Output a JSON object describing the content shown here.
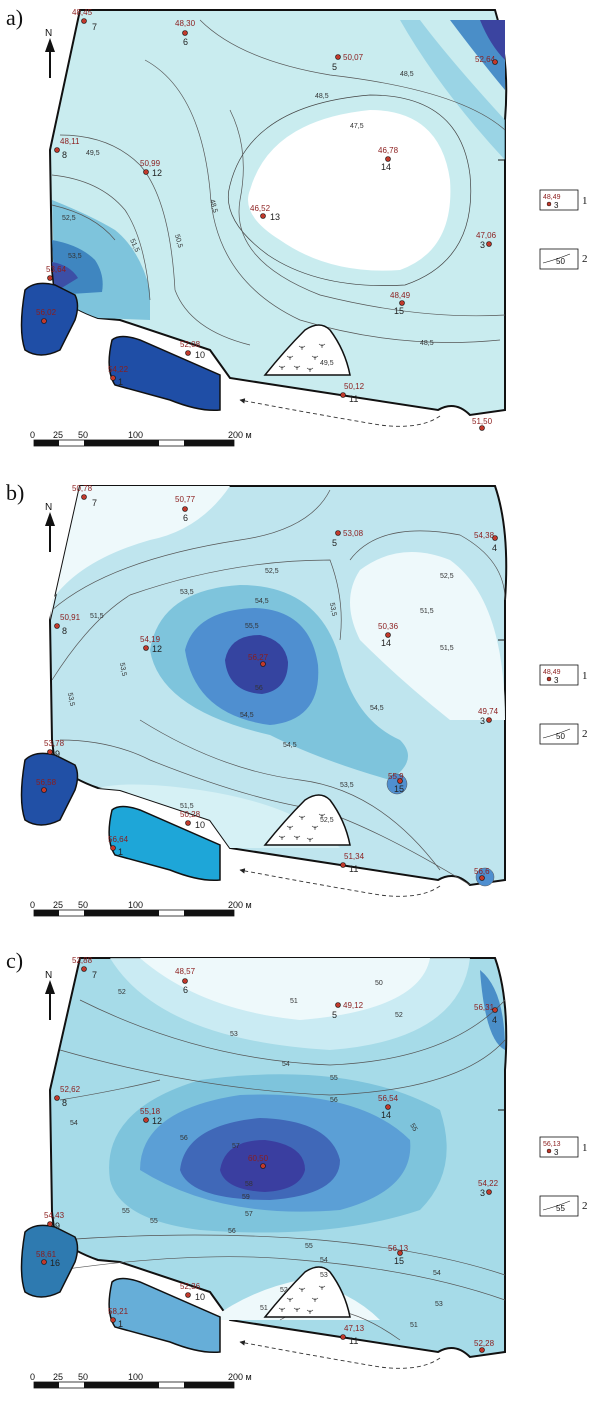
{
  "panels": [
    {
      "label": "a)",
      "wells": [
        {
          "id": "7",
          "value": "48,45"
        },
        {
          "id": "6",
          "value": "48,30"
        },
        {
          "id": "5",
          "value": "50,07"
        },
        {
          "id": "4",
          "value": "52,64"
        },
        {
          "id": "8",
          "value": "48,11"
        },
        {
          "id": "12",
          "value": "50,99"
        },
        {
          "id": "14",
          "value": "46,78"
        },
        {
          "id": "13",
          "value": "46,52"
        },
        {
          "id": "3",
          "value": "47,06"
        },
        {
          "id": "15",
          "value": "48,49"
        },
        {
          "id": "9",
          "value": "53,64"
        },
        {
          "id": "16",
          "value": "56,02"
        },
        {
          "id": "1",
          "value": "54,22"
        },
        {
          "id": "10",
          "value": "52,08"
        },
        {
          "id": "11",
          "value": "50,12"
        },
        {
          "id": "2",
          "value": "51,50"
        }
      ],
      "isolines": [
        "48,5",
        "47,5",
        "49,5",
        "50,5",
        "51,5",
        "52,5",
        "53,5"
      ],
      "legend": {
        "value": "48,49",
        "well": "3",
        "item1": "1",
        "contour": "50",
        "item2": "2"
      }
    },
    {
      "label": "b)",
      "wells": [
        {
          "id": "7",
          "value": "50,78"
        },
        {
          "id": "6",
          "value": "50,77"
        },
        {
          "id": "5",
          "value": "53,08"
        },
        {
          "id": "4",
          "value": "54,38"
        },
        {
          "id": "8",
          "value": "50,91"
        },
        {
          "id": "12",
          "value": "54,19"
        },
        {
          "id": "14",
          "value": "50,36"
        },
        {
          "id": "13",
          "value": "56,27"
        },
        {
          "id": "3",
          "value": "49,74"
        },
        {
          "id": "15",
          "value": "55,9"
        },
        {
          "id": "9",
          "value": "53,78"
        },
        {
          "id": "16",
          "value": "56,58"
        },
        {
          "id": "1",
          "value": "56,64"
        },
        {
          "id": "10",
          "value": "50,28"
        },
        {
          "id": "11",
          "value": "51,34"
        },
        {
          "id": "2",
          "value": "56,6"
        }
      ],
      "isolines": [
        "52,5",
        "53,5",
        "51,5",
        "54,5",
        "55,5",
        "56",
        "53,5",
        "52,5"
      ],
      "legend": {
        "value": "48,49",
        "well": "3",
        "item1": "1",
        "contour": "50",
        "item2": "2"
      }
    },
    {
      "label": "c)",
      "wells": [
        {
          "id": "7",
          "value": "52,88"
        },
        {
          "id": "6",
          "value": "48,57"
        },
        {
          "id": "5",
          "value": "49,12"
        },
        {
          "id": "4",
          "value": "56,31"
        },
        {
          "id": "8",
          "value": "52,62"
        },
        {
          "id": "12",
          "value": "55,18"
        },
        {
          "id": "14",
          "value": "56,54"
        },
        {
          "id": "13",
          "value": "60,50"
        },
        {
          "id": "3",
          "value": "54,22"
        },
        {
          "id": "15",
          "value": "56,13"
        },
        {
          "id": "9",
          "value": "54,43"
        },
        {
          "id": "16",
          "value": "58,61"
        },
        {
          "id": "1",
          "value": "58,21"
        },
        {
          "id": "10",
          "value": "52,36"
        },
        {
          "id": "11",
          "value": "47,13"
        },
        {
          "id": "2",
          "value": "52,28"
        }
      ],
      "isolines": [
        "50",
        "51",
        "52",
        "53",
        "54",
        "55",
        "56",
        "57",
        "58",
        "59"
      ],
      "legend": {
        "value": "56,13",
        "well": "3",
        "item1": "1",
        "contour": "55",
        "item2": "2"
      }
    }
  ],
  "north": "N",
  "scale": {
    "ticks": [
      "0",
      "25",
      "50",
      "100",
      "200 м"
    ]
  }
}
